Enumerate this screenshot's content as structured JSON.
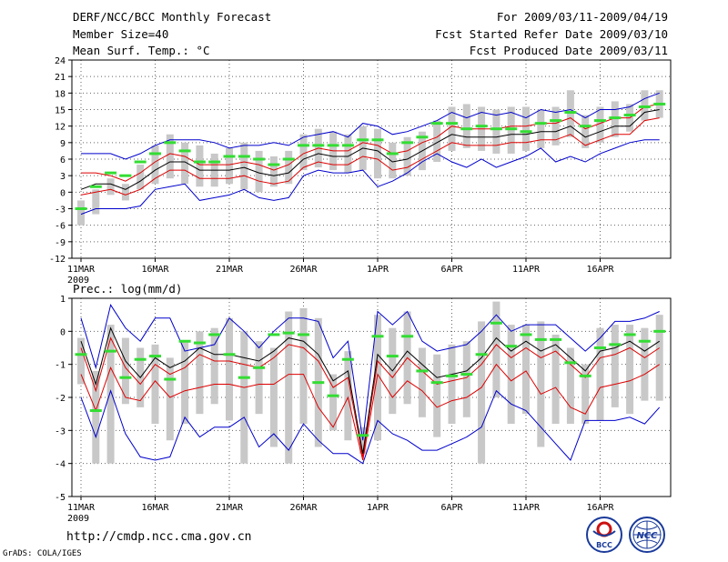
{
  "header": {
    "title": "DERF/NCC/BCC Monthly Forecast",
    "member_size": "Member Size=40",
    "variable": "Mean Surf. Temp.: °C",
    "period": "For 2009/03/11-2009/04/19",
    "start_date": "Fcst Started Refer Date 2009/03/10",
    "produced_date": "Fcst Produced Date 2009/03/11"
  },
  "footer": {
    "url": "http://cmdp.ncc.cma.gov.cn",
    "credit": "GrADS: COLA/IGES",
    "logo_left": "BCC",
    "logo_right": "NCC"
  },
  "colors": {
    "box": "#c8c8c8",
    "median": "#33dd33",
    "mean": "#000000",
    "inner": "#dd0000",
    "outer": "#0000cc",
    "grid": "#666666"
  },
  "chart_data": [
    {
      "type": "line",
      "title": "Mean Surf. Temp.: °C",
      "xlabel": "",
      "ylabel": "°C",
      "ylim": [
        -12,
        24
      ],
      "yticks": [
        -12,
        -9,
        -6,
        -3,
        0,
        3,
        6,
        9,
        12,
        15,
        18,
        21,
        24
      ],
      "x_tick_labels": [
        "11MAR",
        "16MAR",
        "21MAR",
        "26MAR",
        "1APR",
        "6APR",
        "11APR",
        "16APR"
      ],
      "x_year": "2009",
      "x": [
        1,
        2,
        3,
        4,
        5,
        6,
        7,
        8,
        9,
        10,
        11,
        12,
        13,
        14,
        15,
        16,
        17,
        18,
        19,
        20,
        21,
        22,
        23,
        24,
        25,
        26,
        27,
        28,
        29,
        30,
        31,
        32,
        33,
        34,
        35,
        36,
        37,
        38,
        39,
        40
      ],
      "series": [
        {
          "name": "box_top",
          "values": [
            -1.5,
            0.5,
            2.5,
            1.5,
            5,
            8.5,
            10.5,
            9,
            8.5,
            7,
            8,
            9,
            7.5,
            6.5,
            7.5,
            10.5,
            11.5,
            11,
            10.5,
            12,
            11.5,
            9,
            10,
            11,
            13,
            15.5,
            16,
            15.5,
            15,
            15.5,
            15.5,
            15,
            15.5,
            18.5,
            14,
            15.5,
            16.5,
            16,
            18.5,
            18.5
          ]
        },
        {
          "name": "box_bottom",
          "values": [
            -6,
            -4,
            -0.5,
            -1.5,
            0.5,
            1.5,
            2.5,
            1.5,
            1,
            1,
            1.5,
            0.5,
            0,
            1,
            1.5,
            4,
            4.5,
            4,
            3.5,
            4,
            2.5,
            2.5,
            3,
            4,
            5.5,
            7.5,
            8,
            7.5,
            7,
            7,
            7.5,
            8,
            8.5,
            10,
            8,
            9,
            10,
            11,
            13,
            13.5
          ]
        },
        {
          "name": "median",
          "values": [
            -3,
            1,
            3.5,
            3,
            5.5,
            7,
            9,
            7.5,
            5.5,
            5.5,
            6.5,
            6.5,
            6,
            5,
            6,
            8.5,
            8.5,
            8.5,
            8.5,
            9.5,
            9.5,
            7,
            9,
            10,
            12.5,
            12.5,
            11.5,
            12,
            11.5,
            11.5,
            11,
            12.5,
            13,
            14.5,
            12,
            13,
            13.5,
            14,
            15.5,
            16
          ]
        },
        {
          "name": "ensemble_mean",
          "values": [
            0.5,
            1.5,
            1.5,
            0.5,
            2,
            4,
            5.5,
            5.5,
            4,
            4,
            4,
            4.5,
            3.5,
            3,
            3.5,
            6,
            7,
            6.5,
            6.5,
            8,
            7.5,
            5.5,
            6,
            7.5,
            9,
            10.5,
            10,
            10,
            10,
            10.5,
            10.5,
            11,
            11,
            12,
            10,
            11,
            12,
            12,
            14.5,
            15
          ]
        },
        {
          "name": "upper_inner",
          "values": [
            3.5,
            3.5,
            3,
            2,
            3.5,
            5.5,
            7,
            6.5,
            5,
            5,
            5,
            5.5,
            5,
            4,
            5,
            7,
            8,
            7.5,
            7.5,
            9,
            8.5,
            7,
            7.5,
            9,
            10,
            12,
            11.5,
            11.5,
            11.5,
            12,
            12,
            12.5,
            12.5,
            13.5,
            11.5,
            12.5,
            13.5,
            13.5,
            15.5,
            16
          ]
        },
        {
          "name": "lower_inner",
          "values": [
            -0.5,
            0,
            0.5,
            -0.5,
            0.5,
            2.5,
            4,
            4,
            2.5,
            2.5,
            2.5,
            3,
            2,
            1.5,
            2,
            4.5,
            5.5,
            5,
            5,
            6.5,
            6,
            4,
            4.5,
            6,
            7.5,
            9,
            8.5,
            8.5,
            8.5,
            9,
            9,
            9.5,
            9.5,
            10.5,
            8.5,
            9.5,
            10.5,
            10.5,
            13,
            13.5
          ]
        },
        {
          "name": "upper_outer",
          "values": [
            7,
            7,
            7,
            6,
            7,
            8.5,
            9.5,
            9.5,
            9.5,
            9,
            8,
            8.5,
            8.5,
            9,
            8.5,
            10,
            10.5,
            11,
            10,
            12.5,
            12,
            10.5,
            11,
            12,
            13,
            14.5,
            13.5,
            14.5,
            14,
            14.5,
            13.5,
            15,
            14.5,
            15,
            13.5,
            15,
            15,
            15.5,
            17,
            18
          ]
        },
        {
          "name": "lower_outer",
          "values": [
            -4,
            -3,
            -3,
            -3,
            -2.5,
            0.5,
            1,
            1.5,
            -1.5,
            -1,
            -0.5,
            0.5,
            -1,
            -1.5,
            -1,
            3,
            4,
            3.5,
            3.5,
            4,
            1,
            2,
            3.5,
            5.5,
            7,
            5.5,
            4.5,
            6,
            4.5,
            5.5,
            6.5,
            8,
            5.5,
            6.5,
            5.5,
            7,
            8,
            9,
            9.5,
            9.5
          ]
        }
      ]
    },
    {
      "type": "line",
      "title": "Prec.: log(mm/d)",
      "xlabel": "",
      "ylabel": "log(mm/d)",
      "ylim": [
        -5,
        1
      ],
      "yticks": [
        -5,
        -4,
        -3,
        -2,
        -1,
        0,
        1
      ],
      "x_tick_labels": [
        "11MAR",
        "16MAR",
        "21MAR",
        "26MAR",
        "1APR",
        "6APR",
        "11APR",
        "16APR"
      ],
      "x_year": "2009",
      "x": [
        1,
        2,
        3,
        4,
        5,
        6,
        7,
        8,
        9,
        10,
        11,
        12,
        13,
        14,
        15,
        16,
        17,
        18,
        19,
        20,
        21,
        22,
        23,
        24,
        25,
        26,
        27,
        28,
        29,
        30,
        31,
        32,
        33,
        34,
        35,
        36,
        37,
        38,
        39,
        40
      ],
      "series": [
        {
          "name": "box_top",
          "values": [
            -0.2,
            -1.2,
            0.2,
            -0.2,
            -0.5,
            -0.4,
            -0.8,
            -0.3,
            0,
            0.1,
            0.4,
            0,
            -0.3,
            -0.5,
            0.6,
            0.7,
            0.4,
            -1.3,
            -0.6,
            -2.9,
            0.5,
            0.1,
            0.6,
            -0.5,
            -0.7,
            -0.4,
            -0.3,
            0.3,
            0.9,
            0.2,
            0.2,
            0.3,
            -0.1,
            -0.5,
            -1,
            0.1,
            0.2,
            0.2,
            0.1,
            0.5
          ]
        },
        {
          "name": "box_bottom",
          "values": [
            -1.6,
            -4,
            -4,
            -2.2,
            -2.3,
            -2.8,
            -3.3,
            -2.8,
            -2.5,
            -2.2,
            -2.7,
            -4,
            -2.5,
            -3.5,
            -4,
            -2.8,
            -3.5,
            -3,
            -3.3,
            -3.7,
            -3.3,
            -2.5,
            -2.2,
            -2.6,
            -3.2,
            -2.8,
            -2.6,
            -4,
            -2,
            -2.8,
            -2.5,
            -3.5,
            -2.8,
            -2.8,
            -2.8,
            -2.7,
            -2.3,
            -2.5,
            -2.1,
            -2.1
          ]
        },
        {
          "name": "median",
          "values": [
            -0.7,
            -2.4,
            -0.6,
            -1.4,
            -0.85,
            -0.75,
            -1.45,
            -0.3,
            -0.35,
            -0.1,
            -0.7,
            -1.4,
            -1.1,
            -0.1,
            -0.05,
            -0.1,
            -1.55,
            -1.95,
            -0.85,
            -3.15,
            -0.15,
            -0.75,
            -0.15,
            -1.2,
            -1.55,
            -1.35,
            -1.3,
            -0.7,
            0.25,
            -0.45,
            -0.1,
            -0.25,
            -0.25,
            -0.95,
            -1.35,
            -0.5,
            -0.4,
            -0.1,
            -0.3,
            0
          ]
        },
        {
          "name": "ensemble_mean",
          "values": [
            -0.3,
            -1.6,
            0.1,
            -0.9,
            -1.4,
            -0.8,
            -1.1,
            -0.9,
            -0.5,
            -0.7,
            -0.7,
            -0.8,
            -0.9,
            -0.6,
            -0.2,
            -0.3,
            -0.7,
            -1.5,
            -1.2,
            -3.7,
            -0.7,
            -1.2,
            -0.6,
            -1,
            -1.4,
            -1.3,
            -1.2,
            -0.8,
            -0.2,
            -0.6,
            -0.3,
            -0.6,
            -0.4,
            -0.8,
            -1.2,
            -0.6,
            -0.5,
            -0.3,
            -0.6,
            -0.3
          ]
        },
        {
          "name": "upper_inner",
          "values": [
            -0.5,
            -1.8,
            -0.2,
            -1.1,
            -1.6,
            -1,
            -1.3,
            -1.1,
            -0.7,
            -0.9,
            -0.9,
            -1,
            -1.1,
            -0.8,
            -0.4,
            -0.5,
            -0.9,
            -1.7,
            -1.4,
            -3.8,
            -0.9,
            -1.4,
            -0.8,
            -1.2,
            -1.6,
            -1.5,
            -1.4,
            -1,
            -0.4,
            -0.8,
            -0.5,
            -0.8,
            -0.6,
            -1,
            -1.4,
            -0.8,
            -0.7,
            -0.5,
            -0.8,
            -0.5
          ]
        },
        {
          "name": "lower_inner",
          "values": [
            -1.3,
            -2.4,
            -1.1,
            -2,
            -2.1,
            -1.5,
            -2,
            -1.8,
            -1.7,
            -1.6,
            -1.6,
            -1.7,
            -1.6,
            -1.6,
            -1.3,
            -1.3,
            -2.3,
            -2.9,
            -2,
            -3.9,
            -1.3,
            -2,
            -1.5,
            -1.8,
            -2.3,
            -2.1,
            -2,
            -1.7,
            -1,
            -1.5,
            -1.2,
            -1.9,
            -1.7,
            -2.3,
            -2.5,
            -1.7,
            -1.6,
            -1.5,
            -1.3,
            -1
          ]
        },
        {
          "name": "upper_outer",
          "values": [
            0.4,
            -1.1,
            0.8,
            0.1,
            -0.3,
            0.4,
            0.4,
            -0.6,
            -0.5,
            -0.4,
            0.4,
            0,
            -0.5,
            0,
            0.4,
            0.4,
            0.3,
            -0.8,
            -0.3,
            -3.3,
            0.6,
            0.2,
            0.6,
            -0.3,
            -0.6,
            -0.5,
            -0.4,
            0,
            0.5,
            0,
            0.2,
            0.2,
            0.2,
            -0.2,
            -0.6,
            -0.2,
            0.3,
            0.3,
            0.4,
            0.6
          ]
        },
        {
          "name": "lower_outer",
          "values": [
            -2,
            -3.2,
            -1.8,
            -3.1,
            -3.8,
            -3.9,
            -3.8,
            -2.6,
            -3.2,
            -2.9,
            -2.9,
            -2.6,
            -3.5,
            -3.1,
            -3.6,
            -2.8,
            -3.3,
            -3.7,
            -3.7,
            -4,
            -2.7,
            -3.1,
            -3.3,
            -3.6,
            -3.6,
            -3.4,
            -3.2,
            -2.9,
            -1.8,
            -2.2,
            -2.4,
            -2.9,
            -3.4,
            -3.9,
            -2.7,
            -2.7,
            -2.7,
            -2.6,
            -2.8,
            -2.3
          ]
        }
      ]
    }
  ]
}
